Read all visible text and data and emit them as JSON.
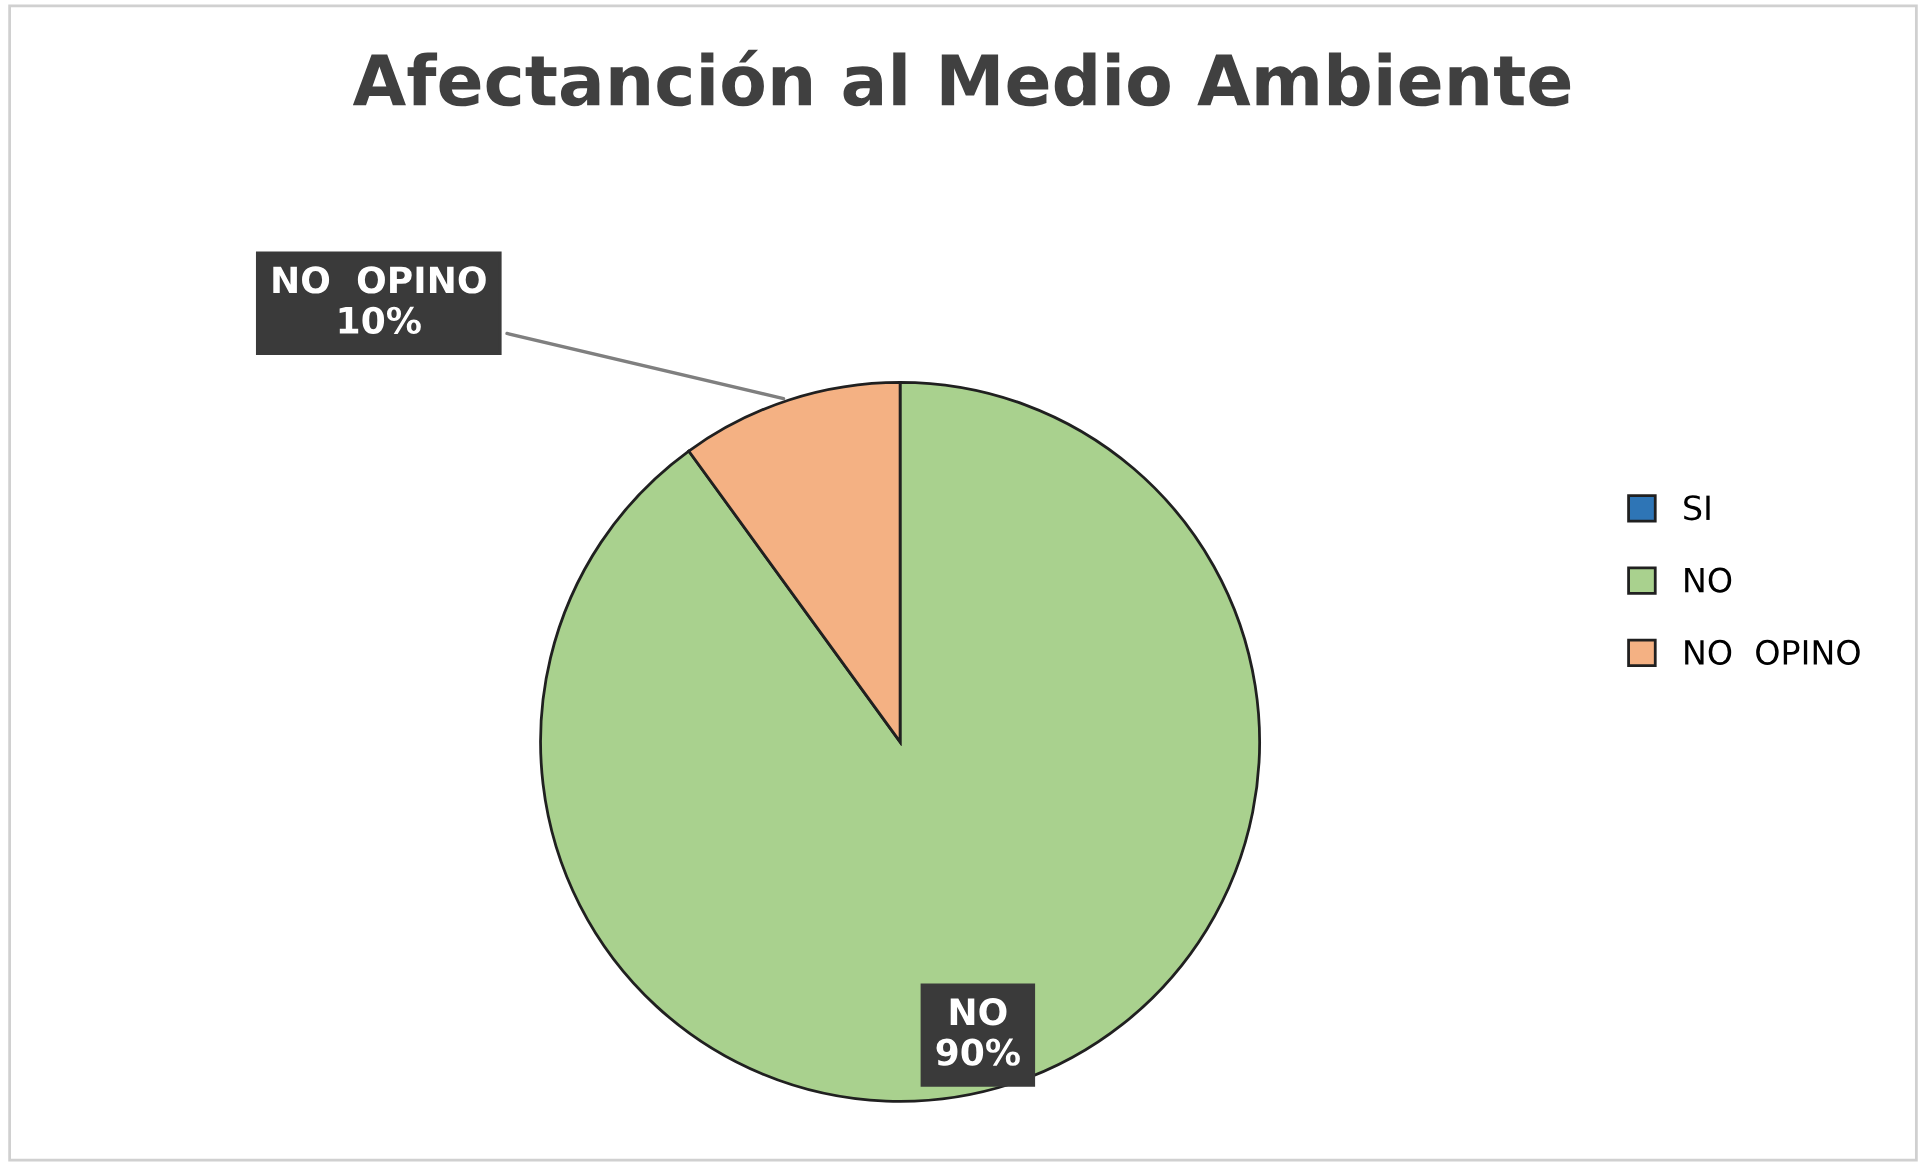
{
  "chart_data": {
    "type": "pie",
    "title": "Afectanción al Medio Ambiente",
    "categories": [
      "SI",
      "NO",
      "NO  OPINO"
    ],
    "values": [
      0,
      90,
      10
    ],
    "colors": [
      "#2e75b6",
      "#a9d18e",
      "#f4b183"
    ],
    "value_labels": [
      null,
      "NO\n90%",
      "NO  OPINO\n10%"
    ],
    "legend": "right"
  }
}
